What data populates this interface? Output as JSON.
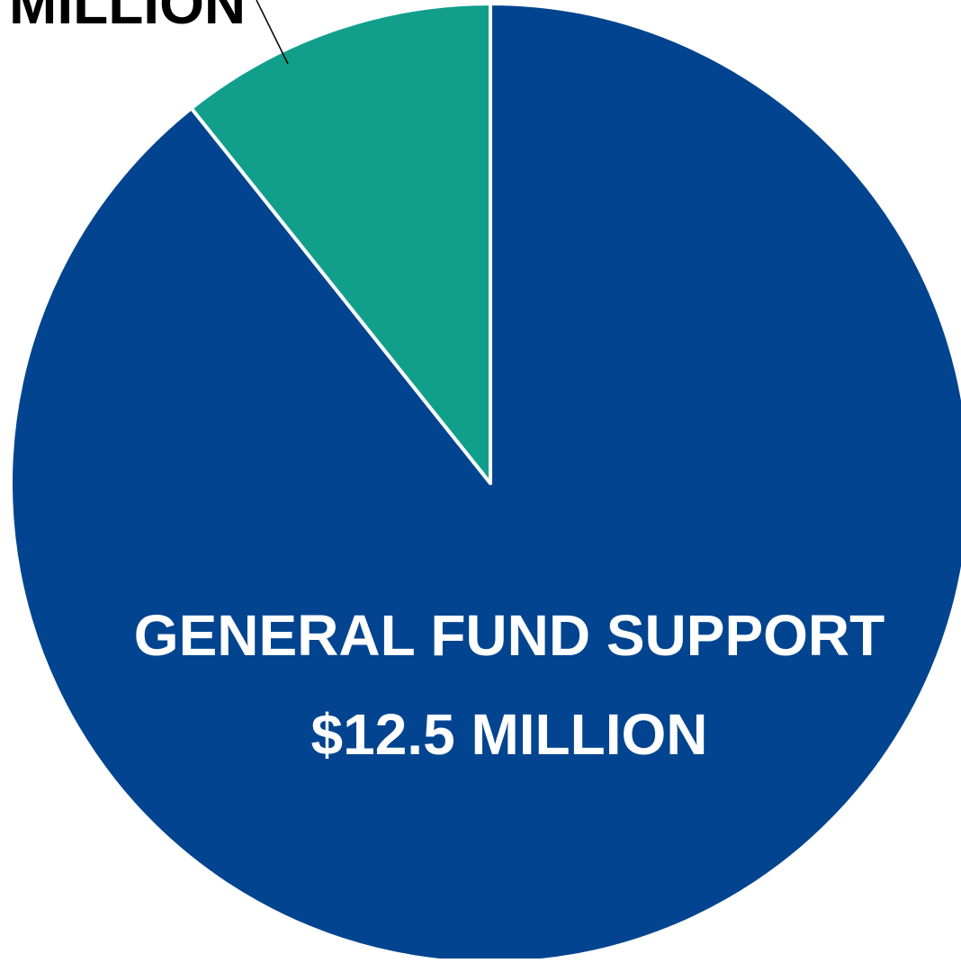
{
  "chart_data": {
    "type": "pie",
    "title": "",
    "slices": [
      {
        "label_lines": [
          "GENERAL FUND SUPPORT",
          "$12.5 MILLION"
        ],
        "value": 12.5,
        "color": "#02448F",
        "label_color": "#FFFFFF"
      },
      {
        "label_lines": [
          "MILLION"
        ],
        "value": 1.5,
        "color": "#119F8C",
        "label_color": "#000000"
      }
    ],
    "legend": "none",
    "leader_line_color": "#000000",
    "slice_border_color": "#FFFFFF"
  }
}
